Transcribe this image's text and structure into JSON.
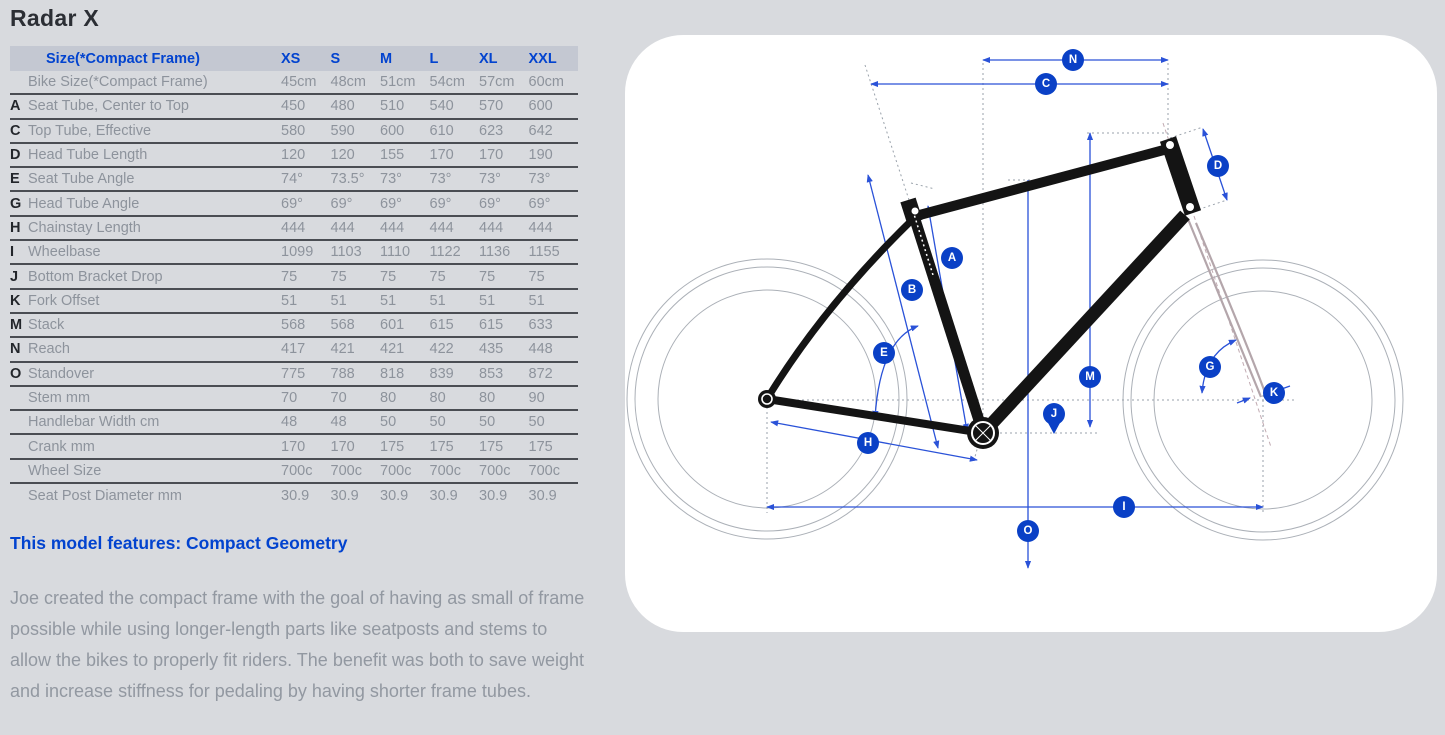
{
  "title": "Radar X",
  "table": {
    "header_label": "Size(*Compact Frame)",
    "sizes": [
      "XS",
      "S",
      "M",
      "L",
      "XL",
      "XXL"
    ],
    "rows": [
      {
        "letter": "",
        "label": "Bike Size(*Compact Frame)",
        "values": [
          "45cm",
          "48cm",
          "51cm",
          "54cm",
          "57cm",
          "60cm"
        ]
      },
      {
        "letter": "A",
        "label": "Seat Tube, Center to Top",
        "values": [
          "450",
          "480",
          "510",
          "540",
          "570",
          "600"
        ]
      },
      {
        "letter": "C",
        "label": "Top Tube, Effective",
        "values": [
          "580",
          "590",
          "600",
          "610",
          "623",
          "642"
        ]
      },
      {
        "letter": "D",
        "label": "Head Tube Length",
        "values": [
          "120",
          "120",
          "155",
          "170",
          "170",
          "190"
        ]
      },
      {
        "letter": "E",
        "label": "Seat Tube Angle",
        "values": [
          "74°",
          "73.5°",
          "73°",
          "73°",
          "73°",
          "73°"
        ]
      },
      {
        "letter": "G",
        "label": "Head Tube Angle",
        "values": [
          "69°",
          "69°",
          "69°",
          "69°",
          "69°",
          "69°"
        ]
      },
      {
        "letter": "H",
        "label": "Chainstay Length",
        "values": [
          "444",
          "444",
          "444",
          "444",
          "444",
          "444"
        ]
      },
      {
        "letter": "I",
        "label": "Wheelbase",
        "values": [
          "1099",
          "1103",
          "1110",
          "1122",
          "1136",
          "1155"
        ]
      },
      {
        "letter": "J",
        "label": "Bottom Bracket Drop",
        "values": [
          "75",
          "75",
          "75",
          "75",
          "75",
          "75"
        ]
      },
      {
        "letter": "K",
        "label": "Fork Offset",
        "values": [
          "51",
          "51",
          "51",
          "51",
          "51",
          "51"
        ]
      },
      {
        "letter": "M",
        "label": "Stack",
        "values": [
          "568",
          "568",
          "601",
          "615",
          "615",
          "633"
        ]
      },
      {
        "letter": "N",
        "label": "Reach",
        "values": [
          "417",
          "421",
          "421",
          "422",
          "435",
          "448"
        ]
      },
      {
        "letter": "O",
        "label": "Standover",
        "values": [
          "775",
          "788",
          "818",
          "839",
          "853",
          "872"
        ]
      },
      {
        "letter": "",
        "label": "Stem mm",
        "values": [
          "70",
          "70",
          "80",
          "80",
          "80",
          "90"
        ]
      },
      {
        "letter": "",
        "label": "Handlebar Width cm",
        "values": [
          "48",
          "48",
          "50",
          "50",
          "50",
          "50"
        ]
      },
      {
        "letter": "",
        "label": "Crank mm",
        "values": [
          "170",
          "170",
          "175",
          "175",
          "175",
          "175"
        ]
      },
      {
        "letter": "",
        "label": "Wheel Size",
        "values": [
          "700c",
          "700c",
          "700c",
          "700c",
          "700c",
          "700c"
        ]
      },
      {
        "letter": "",
        "label": "Seat Post Diameter mm",
        "values": [
          "30.9",
          "30.9",
          "30.9",
          "30.9",
          "30.9",
          "30.9"
        ]
      }
    ]
  },
  "features_line": "This model features: Compact Geometry",
  "description": "Joe created the compact frame with the goal of having as small of frame possible while using longer-length parts like seatposts and stems to allow the bikes to properly fit riders. The benefit was both to save weight and increase stiffness for pedaling by having shorter frame tubes.",
  "diagram": {
    "badges": [
      "A",
      "B",
      "C",
      "D",
      "E",
      "G",
      "H",
      "I",
      "J",
      "K",
      "M",
      "N",
      "O"
    ]
  },
  "colors": {
    "accent_blue": "#0a40c6",
    "dimension_blue": "#2a52d8",
    "text_gray": "#8d939c",
    "dark_text": "#23262b",
    "page_bg": "#d8dade",
    "header_bg": "#c4c8d2",
    "panel_bg": "#ffffff"
  }
}
